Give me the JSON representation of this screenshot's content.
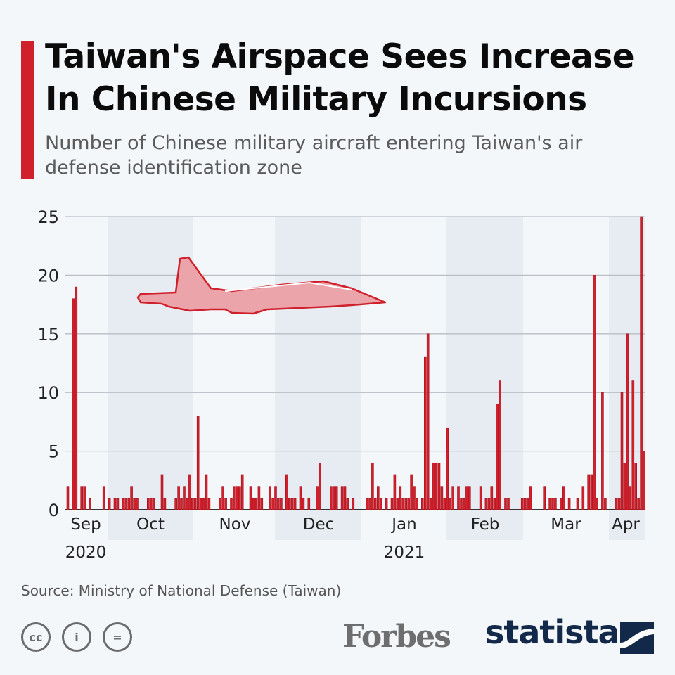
{
  "header": {
    "title": "Taiwan's Airspace Sees Increase In Chinese Military Incursions",
    "subtitle": "Number of Chinese military aircraft entering Taiwan's air defense identification zone"
  },
  "chart_data": {
    "type": "bar",
    "title": "Taiwan's Airspace Sees Increase In Chinese Military Incursions",
    "subtitle": "Number of Chinese military aircraft entering Taiwan's air defense identification zone",
    "xlabel": "",
    "ylabel": "",
    "x_start": "2020-09-16",
    "x_unit": "day",
    "ylim": [
      0,
      25
    ],
    "y_ticks": [
      "0",
      "5",
      "10",
      "15",
      "20",
      "25"
    ],
    "month_labels": [
      "Sep",
      "Oct",
      "Nov",
      "Dec",
      "Jan",
      "Feb",
      "Mar",
      "Apr"
    ],
    "year_labels": [
      "2020",
      "2021"
    ],
    "grid": true,
    "color": "#d0202c",
    "values": [
      2,
      0,
      18,
      19,
      0,
      2,
      2,
      0,
      1,
      0,
      0,
      0,
      0,
      2,
      0,
      1,
      0,
      1,
      1,
      0,
      1,
      1,
      1,
      2,
      1,
      1,
      0,
      0,
      0,
      1,
      1,
      1,
      0,
      0,
      3,
      1,
      0,
      0,
      0,
      1,
      2,
      1,
      2,
      1,
      3,
      1,
      1,
      8,
      1,
      1,
      3,
      1,
      0,
      0,
      0,
      1,
      2,
      1,
      0,
      1,
      2,
      2,
      2,
      3,
      0,
      0,
      2,
      1,
      1,
      2,
      1,
      0,
      0,
      2,
      1,
      2,
      1,
      1,
      0,
      3,
      1,
      1,
      1,
      0,
      2,
      1,
      0,
      1,
      0,
      0,
      2,
      4,
      0,
      0,
      0,
      2,
      2,
      2,
      0,
      2,
      2,
      1,
      0,
      1,
      0,
      0,
      0,
      0,
      1,
      1,
      4,
      1,
      2,
      1,
      0,
      1,
      0,
      1,
      3,
      1,
      2,
      1,
      1,
      1,
      3,
      2,
      1,
      0,
      1,
      13,
      15,
      1,
      4,
      4,
      4,
      2,
      1,
      7,
      1,
      2,
      0,
      2,
      1,
      1,
      2,
      2,
      0,
      0,
      0,
      2,
      0,
      1,
      1,
      2,
      1,
      9,
      11,
      0,
      1,
      1,
      0,
      0,
      0,
      0,
      1,
      1,
      1,
      2,
      0,
      0,
      0,
      0,
      2,
      0,
      1,
      1,
      1,
      0,
      1,
      2,
      0,
      1,
      0,
      0,
      1,
      0,
      2,
      0,
      3,
      3,
      20,
      1,
      0,
      10,
      1,
      0,
      0,
      0,
      1,
      1,
      10,
      4,
      15,
      2,
      11,
      4,
      1,
      25,
      5
    ]
  },
  "footer": {
    "source": "Source: Ministry of National Defense (Taiwan)",
    "cc_label": "cc",
    "by_label": "i",
    "nd_label": "=",
    "partner": "Forbes",
    "brand": "statista"
  }
}
